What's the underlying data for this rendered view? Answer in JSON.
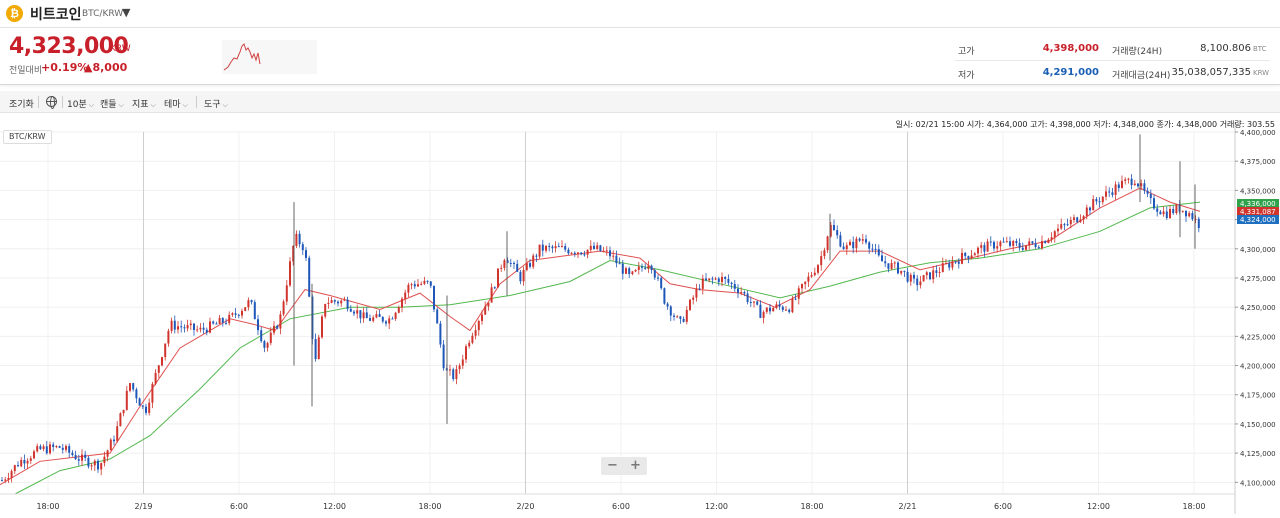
{
  "header": {
    "coin_icon": "bitcoin-icon",
    "coin_glyph": "₿",
    "coin_name": "비트코인",
    "pair": "BTC/KRW",
    "caret": "▼"
  },
  "price": {
    "current": "4,323,000",
    "unit": "KRW",
    "change_label": "전일대비",
    "change_pct": "+0.19%",
    "change_amount": "▲8,000",
    "color_up": "#c8202a",
    "color_down": "#1a5fb4"
  },
  "stats": {
    "high_label": "고가",
    "high_value": "4,398,000",
    "low_label": "저가",
    "low_value": "4,291,000",
    "volume_label": "거래량(24H)",
    "volume_value": "8,100.806",
    "volume_unit": "BTC",
    "amount_label": "거래대금(24H)",
    "amount_value": "35,038,057,335",
    "amount_unit": "KRW"
  },
  "toolbar": {
    "reset": "조기화",
    "interval": "10분",
    "candle": "캔들",
    "indicator": "지표",
    "theme": "테마",
    "tools": "도구"
  },
  "chart": {
    "tag": "BTC/KRW",
    "ohlc_text": "일시: 02/21 15:00 시가: 4,364,000 고가: 4,398,000 저가: 4,348,000 종가: 4,348,000 거래량: 303.55",
    "zoom_out": "−",
    "zoom_in": "+"
  },
  "chart_data": {
    "type": "candlestick",
    "x_tick_labels": [
      "18:00",
      "2/19",
      "6:00",
      "12:00",
      "18:00",
      "2/20",
      "6:00",
      "12:00",
      "18:00",
      "2/21",
      "6:00",
      "12:00",
      "18:00"
    ],
    "y_ticks": [
      4100000,
      4125000,
      4150000,
      4175000,
      4200000,
      4225000,
      4250000,
      4275000,
      4300000,
      4325000,
      4350000,
      4375000,
      4400000
    ],
    "ylim": [
      4090000,
      4400000
    ],
    "price_anchors": [
      [
        0,
        4100000
      ],
      [
        20,
        4118000
      ],
      [
        40,
        4128000
      ],
      [
        60,
        4130000
      ],
      [
        80,
        4120000
      ],
      [
        100,
        4115000
      ],
      [
        115,
        4140000
      ],
      [
        130,
        4185000
      ],
      [
        145,
        4160000
      ],
      [
        170,
        4235000
      ],
      [
        200,
        4230000
      ],
      [
        230,
        4240000
      ],
      [
        250,
        4255000
      ],
      [
        265,
        4215000
      ],
      [
        280,
        4240000
      ],
      [
        295,
        4310000
      ],
      [
        305,
        4300000
      ],
      [
        315,
        4200000
      ],
      [
        325,
        4255000
      ],
      [
        345,
        4255000
      ],
      [
        365,
        4240000
      ],
      [
        390,
        4240000
      ],
      [
        410,
        4270000
      ],
      [
        430,
        4270000
      ],
      [
        445,
        4195000
      ],
      [
        455,
        4190000
      ],
      [
        470,
        4225000
      ],
      [
        490,
        4260000
      ],
      [
        505,
        4295000
      ],
      [
        520,
        4275000
      ],
      [
        540,
        4300000
      ],
      [
        560,
        4300000
      ],
      [
        580,
        4298000
      ],
      [
        595,
        4300000
      ],
      [
        610,
        4295000
      ],
      [
        630,
        4275000
      ],
      [
        650,
        4290000
      ],
      [
        665,
        4255000
      ],
      [
        680,
        4235000
      ],
      [
        700,
        4270000
      ],
      [
        720,
        4275000
      ],
      [
        740,
        4265000
      ],
      [
        760,
        4245000
      ],
      [
        775,
        4250000
      ],
      [
        790,
        4250000
      ],
      [
        805,
        4270000
      ],
      [
        820,
        4290000
      ],
      [
        830,
        4320000
      ],
      [
        845,
        4300000
      ],
      [
        865,
        4310000
      ],
      [
        880,
        4290000
      ],
      [
        900,
        4282000
      ],
      [
        915,
        4270000
      ],
      [
        935,
        4280000
      ],
      [
        955,
        4290000
      ],
      [
        980,
        4300000
      ],
      [
        1000,
        4305000
      ],
      [
        1020,
        4302000
      ],
      [
        1040,
        4305000
      ],
      [
        1055,
        4315000
      ],
      [
        1075,
        4325000
      ],
      [
        1095,
        4340000
      ],
      [
        1120,
        4355000
      ],
      [
        1135,
        4360000
      ],
      [
        1150,
        4340000
      ],
      [
        1165,
        4330000
      ],
      [
        1180,
        4335000
      ],
      [
        1190,
        4330000
      ],
      [
        1200,
        4320000
      ]
    ],
    "ma_short": [
      [
        0,
        4098000
      ],
      [
        40,
        4118000
      ],
      [
        80,
        4122000
      ],
      [
        110,
        4125000
      ],
      [
        140,
        4165000
      ],
      [
        180,
        4215000
      ],
      [
        230,
        4240000
      ],
      [
        255,
        4235000
      ],
      [
        275,
        4230000
      ],
      [
        305,
        4265000
      ],
      [
        330,
        4260000
      ],
      [
        380,
        4248000
      ],
      [
        420,
        4262000
      ],
      [
        450,
        4242000
      ],
      [
        470,
        4230000
      ],
      [
        500,
        4270000
      ],
      [
        530,
        4290000
      ],
      [
        600,
        4298000
      ],
      [
        640,
        4292000
      ],
      [
        670,
        4270000
      ],
      [
        700,
        4265000
      ],
      [
        740,
        4262000
      ],
      [
        775,
        4250000
      ],
      [
        810,
        4265000
      ],
      [
        840,
        4298000
      ],
      [
        880,
        4298000
      ],
      [
        920,
        4282000
      ],
      [
        960,
        4290000
      ],
      [
        1010,
        4300000
      ],
      [
        1050,
        4307000
      ],
      [
        1100,
        4335000
      ],
      [
        1140,
        4352000
      ],
      [
        1170,
        4340000
      ],
      [
        1200,
        4332000
      ]
    ],
    "ma_long": [
      [
        15,
        4090000
      ],
      [
        60,
        4110000
      ],
      [
        110,
        4120000
      ],
      [
        150,
        4140000
      ],
      [
        200,
        4180000
      ],
      [
        240,
        4215000
      ],
      [
        290,
        4240000
      ],
      [
        350,
        4250000
      ],
      [
        400,
        4250000
      ],
      [
        450,
        4252000
      ],
      [
        510,
        4260000
      ],
      [
        570,
        4272000
      ],
      [
        610,
        4290000
      ],
      [
        660,
        4282000
      ],
      [
        720,
        4270000
      ],
      [
        780,
        4258000
      ],
      [
        830,
        4268000
      ],
      [
        880,
        4280000
      ],
      [
        930,
        4288000
      ],
      [
        980,
        4292000
      ],
      [
        1040,
        4300000
      ],
      [
        1100,
        4315000
      ],
      [
        1150,
        4335000
      ],
      [
        1200,
        4340000
      ]
    ],
    "spikes": [
      [
        294,
        4340000,
        4200000
      ],
      [
        312,
        4270000,
        4165000
      ],
      [
        447,
        4260000,
        4150000
      ],
      [
        507,
        4315000,
        4260000
      ],
      [
        830,
        4330000,
        4290000
      ],
      [
        1140,
        4398000,
        4340000
      ],
      [
        1180,
        4375000,
        4310000
      ],
      [
        1195,
        4355000,
        4300000
      ]
    ],
    "price_labels": [
      {
        "value": "4,336,000",
        "color": "#2ea34b"
      },
      {
        "value": "4,331,087",
        "color": "#d0342c"
      },
      {
        "value": "4,324,000",
        "color": "#1f6fc0"
      }
    ],
    "colors": {
      "up": "#d0342c",
      "down": "#1f57b8",
      "ma_short": "#e05050",
      "ma_long": "#52b84d"
    }
  }
}
